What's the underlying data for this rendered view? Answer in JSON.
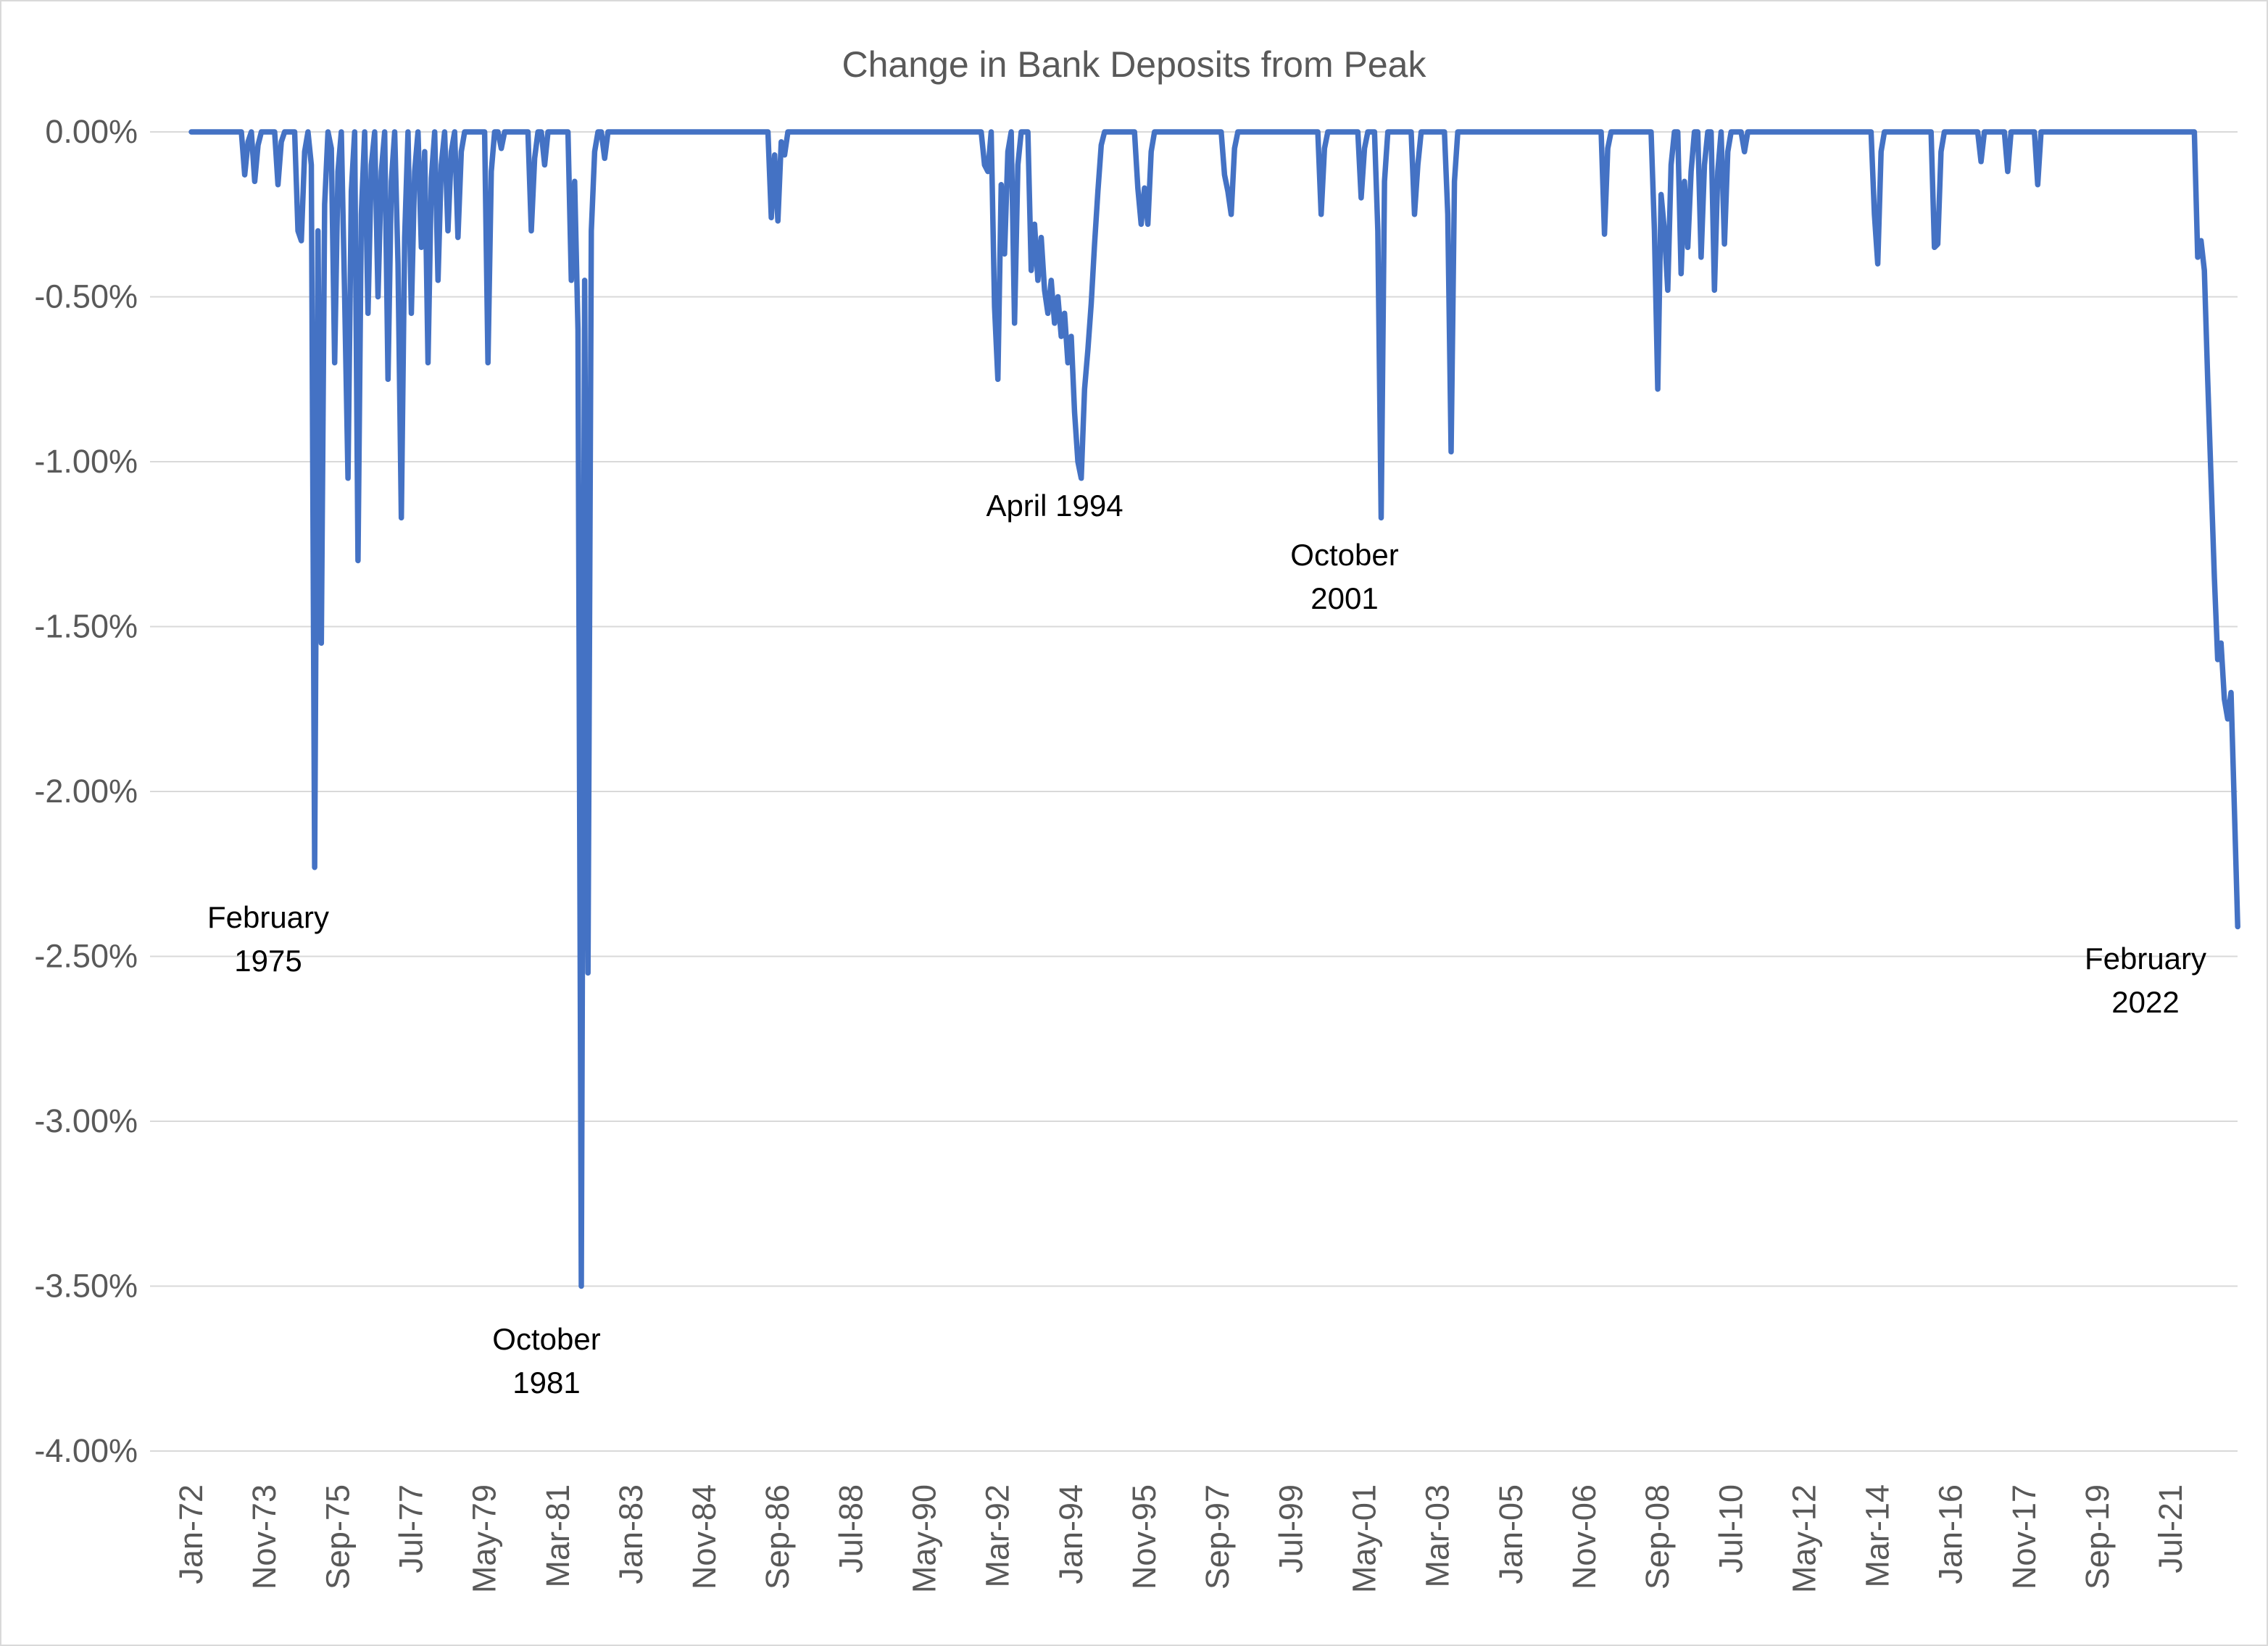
{
  "chart": {
    "title": "Change in Bank Deposits from Peak",
    "colors": {
      "line": "#4472C4",
      "gridline": "#D9D9D9",
      "axis_text": "#595959",
      "annotation_text": "#000000",
      "background": "#FFFFFF",
      "border": "#D9D9D9"
    }
  },
  "chart_data": {
    "type": "line",
    "title": "Change in Bank Deposits from Peak",
    "series_name": "Change in bank deposits from peak (%)",
    "x_frequency": "monthly",
    "x_start": "Jan-1972",
    "x_end": "Mar-2023",
    "ylim": [
      -4,
      0
    ],
    "grid": true,
    "legend_position": "none",
    "y_axis_tick_labels": [
      "0.00%",
      "-0.50%",
      "-1.00%",
      "-1.50%",
      "-2.00%",
      "-2.50%",
      "-3.00%",
      "-3.50%",
      "-4.00%"
    ],
    "y_axis_tick_values": [
      0,
      -0.5,
      -1.0,
      -1.5,
      -2.0,
      -2.5,
      -3.0,
      -3.5,
      -4.0
    ],
    "x_axis_tick_labels": [
      "Jan-72",
      "Nov-73",
      "Sep-75",
      "Jul-77",
      "May-79",
      "Mar-81",
      "Jan-83",
      "Nov-84",
      "Sep-86",
      "Jul-88",
      "May-90",
      "Mar-92",
      "Jan-94",
      "Nov-95",
      "Sep-97",
      "Jul-99",
      "May-01",
      "Mar-03",
      "Jan-05",
      "Nov-06",
      "Sep-08",
      "Jul-10",
      "May-12",
      "Mar-14",
      "Jan-16",
      "Nov-17",
      "Sep-19",
      "Jul-21"
    ],
    "x_tick_interval_months": 22,
    "baseline_value": 0,
    "nonzero_points": [
      [
        "May-1973",
        -0.13
      ],
      [
        "Jun-1973",
        -0.03
      ],
      [
        "Aug-1973",
        -0.15
      ],
      [
        "Sep-1973",
        -0.04
      ],
      [
        "Mar-1974",
        -0.16
      ],
      [
        "Apr-1974",
        -0.03
      ],
      [
        "Sep-1974",
        -0.3
      ],
      [
        "Oct-1974",
        -0.33
      ],
      [
        "Nov-1974",
        -0.06
      ],
      [
        "Jan-1975",
        -0.1
      ],
      [
        "Feb-1975",
        -2.23
      ],
      [
        "Mar-1975",
        -0.3
      ],
      [
        "Apr-1975",
        -1.55
      ],
      [
        "May-1975",
        -0.22
      ],
      [
        "Jul-1975",
        -0.05
      ],
      [
        "Aug-1975",
        -0.7
      ],
      [
        "Sep-1975",
        -0.12
      ],
      [
        "Nov-1975",
        -0.5
      ],
      [
        "Dec-1975",
        -1.05
      ],
      [
        "Jan-1976",
        -0.18
      ],
      [
        "Mar-1976",
        -1.3
      ],
      [
        "Apr-1976",
        -0.25
      ],
      [
        "Jun-1976",
        -0.55
      ],
      [
        "Jul-1976",
        -0.1
      ],
      [
        "Sep-1976",
        -0.5
      ],
      [
        "Oct-1976",
        -0.12
      ],
      [
        "Dec-1976",
        -0.75
      ],
      [
        "Jan-1977",
        -0.15
      ],
      [
        "Mar-1977",
        -0.4
      ],
      [
        "Apr-1977",
        -1.17
      ],
      [
        "May-1977",
        -0.32
      ],
      [
        "Jul-1977",
        -0.55
      ],
      [
        "Aug-1977",
        -0.12
      ],
      [
        "Oct-1977",
        -0.35
      ],
      [
        "Nov-1977",
        -0.06
      ],
      [
        "Dec-1977",
        -0.7
      ],
      [
        "Jan-1978",
        -0.14
      ],
      [
        "Mar-1978",
        -0.45
      ],
      [
        "Apr-1978",
        -0.1
      ],
      [
        "Jun-1978",
        -0.3
      ],
      [
        "Jul-1978",
        -0.06
      ],
      [
        "Sep-1978",
        -0.32
      ],
      [
        "Oct-1978",
        -0.06
      ],
      [
        "Jun-1979",
        -0.7
      ],
      [
        "Jul-1979",
        -0.12
      ],
      [
        "Oct-1979",
        -0.05
      ],
      [
        "Jul-1980",
        -0.3
      ],
      [
        "Aug-1980",
        -0.08
      ],
      [
        "Nov-1980",
        -0.1
      ],
      [
        "Jul-1981",
        -0.45
      ],
      [
        "Aug-1981",
        -0.15
      ],
      [
        "Sep-1981",
        -0.6
      ],
      [
        "Oct-1981",
        -3.5
      ],
      [
        "Nov-1981",
        -0.45
      ],
      [
        "Dec-1981",
        -2.55
      ],
      [
        "Jan-1982",
        -0.3
      ],
      [
        "Feb-1982",
        -0.06
      ],
      [
        "May-1982",
        -0.08
      ],
      [
        "Jul-1986",
        -0.26
      ],
      [
        "Aug-1986",
        -0.07
      ],
      [
        "Sep-1986",
        -0.27
      ],
      [
        "Oct-1986",
        -0.03
      ],
      [
        "Nov-1986",
        -0.07
      ],
      [
        "Nov-1991",
        -0.1
      ],
      [
        "Dec-1991",
        -0.12
      ],
      [
        "Feb-1992",
        -0.53
      ],
      [
        "Mar-1992",
        -0.75
      ],
      [
        "Apr-1992",
        -0.16
      ],
      [
        "May-1992",
        -0.37
      ],
      [
        "Jun-1992",
        -0.06
      ],
      [
        "Aug-1992",
        -0.58
      ],
      [
        "Sep-1992",
        -0.1
      ],
      [
        "Jan-1993",
        -0.42
      ],
      [
        "Feb-1993",
        -0.28
      ],
      [
        "Mar-1993",
        -0.45
      ],
      [
        "Apr-1993",
        -0.32
      ],
      [
        "May-1993",
        -0.48
      ],
      [
        "Jun-1993",
        -0.55
      ],
      [
        "Jul-1993",
        -0.45
      ],
      [
        "Aug-1993",
        -0.58
      ],
      [
        "Sep-1993",
        -0.5
      ],
      [
        "Oct-1993",
        -0.62
      ],
      [
        "Nov-1993",
        -0.55
      ],
      [
        "Dec-1993",
        -0.7
      ],
      [
        "Jan-1994",
        -0.62
      ],
      [
        "Feb-1994",
        -0.85
      ],
      [
        "Mar-1994",
        -1.0
      ],
      [
        "Apr-1994",
        -1.05
      ],
      [
        "May-1994",
        -0.78
      ],
      [
        "Jun-1994",
        -0.66
      ],
      [
        "Jul-1994",
        -0.52
      ],
      [
        "Aug-1994",
        -0.34
      ],
      [
        "Sep-1994",
        -0.18
      ],
      [
        "Oct-1994",
        -0.04
      ],
      [
        "Sep-1995",
        -0.17
      ],
      [
        "Oct-1995",
        -0.28
      ],
      [
        "Nov-1995",
        -0.17
      ],
      [
        "Dec-1995",
        -0.28
      ],
      [
        "Jan-1996",
        -0.06
      ],
      [
        "Nov-1997",
        -0.13
      ],
      [
        "Dec-1997",
        -0.18
      ],
      [
        "Jan-1998",
        -0.25
      ],
      [
        "Feb-1998",
        -0.05
      ],
      [
        "Apr-2000",
        -0.25
      ],
      [
        "May-2000",
        -0.05
      ],
      [
        "Apr-2001",
        -0.2
      ],
      [
        "May-2001",
        -0.05
      ],
      [
        "Sep-2001",
        -0.3
      ],
      [
        "Oct-2001",
        -1.17
      ],
      [
        "Nov-2001",
        -0.15
      ],
      [
        "Aug-2002",
        -0.25
      ],
      [
        "Sep-2002",
        -0.1
      ],
      [
        "Jun-2003",
        -0.25
      ],
      [
        "Jul-2003",
        -0.97
      ],
      [
        "Aug-2003",
        -0.15
      ],
      [
        "May-2007",
        -0.31
      ],
      [
        "Jun-2007",
        -0.05
      ],
      [
        "Aug-2008",
        -0.3
      ],
      [
        "Sep-2008",
        -0.78
      ],
      [
        "Oct-2008",
        -0.19
      ],
      [
        "Nov-2008",
        -0.3
      ],
      [
        "Dec-2008",
        -0.48
      ],
      [
        "Jan-2009",
        -0.1
      ],
      [
        "Apr-2009",
        -0.43
      ],
      [
        "May-2009",
        -0.15
      ],
      [
        "Jun-2009",
        -0.35
      ],
      [
        "Jul-2009",
        -0.12
      ],
      [
        "Oct-2009",
        -0.38
      ],
      [
        "Nov-2009",
        -0.1
      ],
      [
        "Feb-2010",
        -0.48
      ],
      [
        "Mar-2010",
        -0.12
      ],
      [
        "May-2010",
        -0.34
      ],
      [
        "Jun-2010",
        -0.06
      ],
      [
        "Nov-2010",
        -0.06
      ],
      [
        "Feb-2014",
        -0.25
      ],
      [
        "Mar-2014",
        -0.4
      ],
      [
        "Apr-2014",
        -0.06
      ],
      [
        "Aug-2015",
        -0.35
      ],
      [
        "Sep-2015",
        -0.34
      ],
      [
        "Oct-2015",
        -0.06
      ],
      [
        "Oct-2016",
        -0.09
      ],
      [
        "Jun-2017",
        -0.12
      ],
      [
        "Mar-2018",
        -0.16
      ],
      [
        "Mar-2022",
        -0.38
      ],
      [
        "Apr-2022",
        -0.33
      ],
      [
        "May-2022",
        -0.42
      ],
      [
        "Jun-2022",
        -0.75
      ],
      [
        "Jul-2022",
        -1.05
      ],
      [
        "Aug-2022",
        -1.35
      ],
      [
        "Sep-2022",
        -1.6
      ],
      [
        "Oct-2022",
        -1.55
      ],
      [
        "Nov-2022",
        -1.72
      ],
      [
        "Dec-2022",
        -1.78
      ],
      [
        "Jan-2023",
        -1.7
      ],
      [
        "Feb-2023",
        -2.05
      ],
      [
        "Mar-2023",
        -2.41
      ]
    ],
    "annotations": [
      {
        "id": "feb-1975",
        "lines": [
          "February",
          "1975"
        ],
        "points_to": {
          "date": "Feb-1975",
          "value": -2.23
        }
      },
      {
        "id": "oct-1981",
        "lines": [
          "October",
          "1981"
        ],
        "points_to": {
          "date": "Oct-1981",
          "value": -3.5
        }
      },
      {
        "id": "apr-1994",
        "lines": [
          "April 1994"
        ],
        "points_to": {
          "date": "Apr-1994",
          "value": -1.05
        }
      },
      {
        "id": "oct-2001",
        "lines": [
          "October",
          "2001"
        ],
        "points_to": {
          "date": "Oct-2001",
          "value": -1.17
        }
      },
      {
        "id": "feb-2022",
        "lines": [
          "February",
          "2022"
        ],
        "points_to": {
          "date": "Feb-2022",
          "value": 0
        }
      }
    ]
  }
}
